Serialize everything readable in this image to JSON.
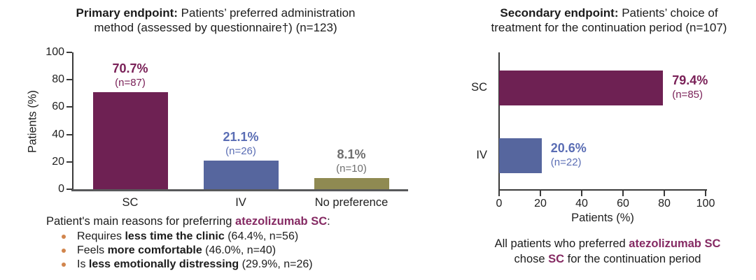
{
  "colors": {
    "purple": "#6e2153",
    "purple_label": "#7a2158",
    "blue": "#56669e",
    "blue_label": "#5a6db4",
    "olive": "#8f8a52",
    "gray_label": "#6e6e6e",
    "highlight": "#852a63",
    "bullet": "#d1854d",
    "axis": "#3a3a3a",
    "baseline": "#58595b",
    "text": "#212121"
  },
  "left": {
    "title": {
      "line1_bold": "Primary endpoint:",
      "line1_rest": " Patients’ preferred administration",
      "line2": "method (assessed by questionnaire†) (n=123)"
    },
    "reasons": {
      "pre": "Patient's main reasons for preferring ",
      "highlight": "atezolizumab SC",
      "post": ":",
      "bullets": [
        {
          "pre": "Requires ",
          "bold": "less time the clinic",
          "post": " (64.4%, n=56)"
        },
        {
          "pre": "Feels ",
          "bold": "more comfortable",
          "post": " (46.0%, n=40)"
        },
        {
          "pre": "Is ",
          "bold": "less emotionally distressing",
          "post": " (29.9%, n=26)"
        }
      ]
    }
  },
  "right": {
    "title": {
      "line1_bold": "Secondary endpoint:",
      "line1_rest": " Patients’ choice of",
      "line2": "treatment for the continuation period (n=107)"
    },
    "footer": {
      "line1_pre": "All patients who preferred ",
      "line1_highlight": "atezolizumab SC",
      "line2_pre": "chose ",
      "line2_highlight": "SC",
      "line2_post": " for the continuation period"
    }
  },
  "chart_data": [
    {
      "type": "bar",
      "orientation": "vertical",
      "title": "Primary endpoint: Patients’ preferred administration method (assessed by questionnaire†) (n=123)",
      "categories": [
        "SC",
        "IV",
        "No preference"
      ],
      "values": [
        70.7,
        21.1,
        8.1
      ],
      "counts": [
        87,
        26,
        10
      ],
      "value_labels": [
        "70.7%",
        "21.1%",
        "8.1%"
      ],
      "n_labels": [
        "(n=87)",
        "(n=26)",
        "(n=10)"
      ],
      "xlabel": "",
      "ylabel": "Patients (%)",
      "ylim": [
        0,
        100
      ],
      "yticks": [
        0,
        20,
        40,
        60,
        80,
        100
      ],
      "grid": false,
      "legend": false,
      "bar_colors": [
        "#6e2153",
        "#56669e",
        "#8f8a52"
      ],
      "label_colors": [
        "#7a2158",
        "#5a6db4",
        "#6e6e6e"
      ]
    },
    {
      "type": "bar",
      "orientation": "horizontal",
      "title": "Secondary endpoint: Patients’ choice of treatment for the continuation period (n=107)",
      "categories": [
        "SC",
        "IV"
      ],
      "values": [
        79.4,
        20.6
      ],
      "counts": [
        85,
        22
      ],
      "value_labels": [
        "79.4%",
        "20.6%"
      ],
      "n_labels": [
        "(n=85)",
        "(n=22)"
      ],
      "xlabel": "Patients (%)",
      "ylabel": "",
      "xlim": [
        0,
        100
      ],
      "xticks": [
        0,
        20,
        40,
        60,
        80,
        100
      ],
      "grid": false,
      "legend": false,
      "bar_colors": [
        "#6e2153",
        "#56669e"
      ],
      "label_colors": [
        "#7a2158",
        "#5a6db4"
      ]
    }
  ]
}
